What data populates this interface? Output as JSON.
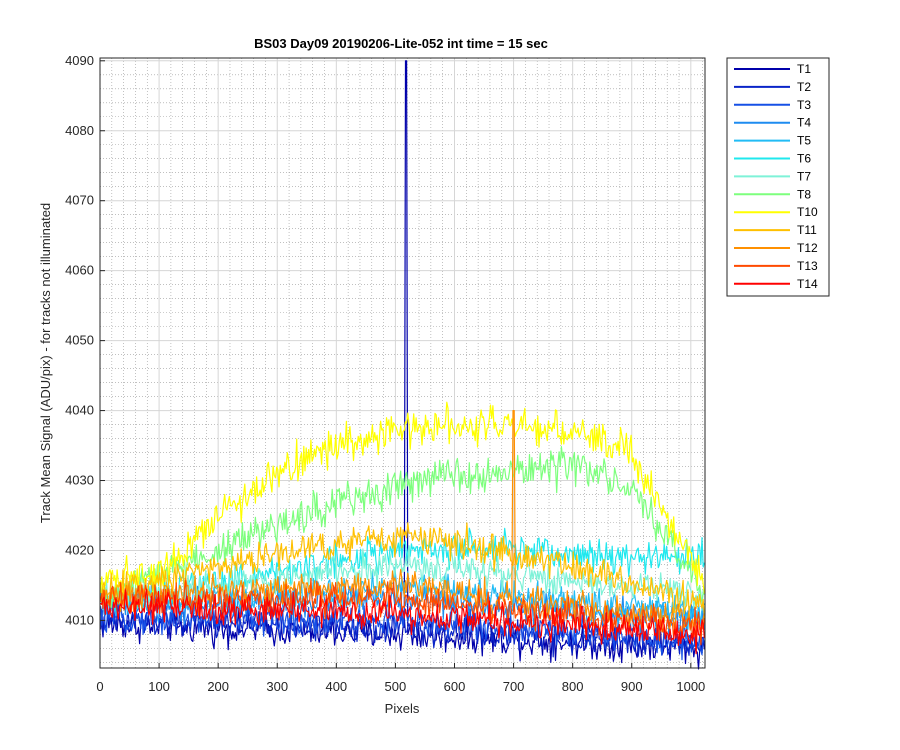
{
  "chart_data": {
    "type": "line",
    "title": "BS03 Day09 20190206-Lite-052 int time = 15 sec",
    "xlabel": "Pixels",
    "ylabel": "Track Mean Signal (ADU/pix) - for tracks not illuminated",
    "xlim": [
      0,
      1024
    ],
    "ylim": [
      4003.2,
      4090.4
    ],
    "xticks": [
      0,
      100,
      200,
      300,
      400,
      500,
      600,
      700,
      800,
      900,
      1000
    ],
    "yticks": [
      4010,
      4020,
      4030,
      4040,
      4050,
      4060,
      4070,
      4080,
      4090
    ],
    "grid": "major and minor",
    "legend_position": "outside top-right",
    "series": [
      {
        "name": "T1",
        "color": "#0000aa",
        "baseline_at": [
          [
            0,
            4009.5
          ],
          [
            500,
            4008
          ],
          [
            1020,
            4006
          ]
        ],
        "noise": 1.4,
        "spikes": [
          {
            "x": 518,
            "y": 4090
          }
        ]
      },
      {
        "name": "T2",
        "color": "#0a24c8",
        "baseline_at": [
          [
            0,
            4010
          ],
          [
            500,
            4009
          ],
          [
            1020,
            4006.5
          ]
        ],
        "noise": 1.4
      },
      {
        "name": "T3",
        "color": "#1650e6",
        "baseline_at": [
          [
            0,
            4010.5
          ],
          [
            500,
            4010
          ],
          [
            1020,
            4007
          ]
        ],
        "noise": 1.4
      },
      {
        "name": "T4",
        "color": "#1e8cf0",
        "baseline_at": [
          [
            0,
            4012
          ],
          [
            500,
            4013
          ],
          [
            1020,
            4010
          ]
        ],
        "noise": 1.4
      },
      {
        "name": "T5",
        "color": "#22bcf5",
        "baseline_at": [
          [
            0,
            4012.5
          ],
          [
            500,
            4015
          ],
          [
            1020,
            4011
          ]
        ],
        "noise": 1.4
      },
      {
        "name": "T6",
        "color": "#1fe8ee",
        "baseline_at": [
          [
            0,
            4013
          ],
          [
            300,
            4017
          ],
          [
            500,
            4020
          ],
          [
            700,
            4020
          ],
          [
            900,
            4019
          ],
          [
            1020,
            4019
          ]
        ],
        "noise": 1.5
      },
      {
        "name": "T7",
        "color": "#7ef2d8",
        "baseline_at": [
          [
            0,
            4013
          ],
          [
            500,
            4018
          ],
          [
            1020,
            4014
          ]
        ],
        "noise": 1.4
      },
      {
        "name": "T8",
        "color": "#7dff7d",
        "baseline_at": [
          [
            0,
            4013
          ],
          [
            200,
            4020
          ],
          [
            400,
            4027
          ],
          [
            600,
            4031
          ],
          [
            800,
            4032
          ],
          [
            900,
            4029
          ],
          [
            1020,
            4014
          ]
        ],
        "noise": 1.6
      },
      {
        "name": "T10",
        "color": "#ffff00",
        "baseline_at": [
          [
            0,
            4016
          ],
          [
            100,
            4017
          ],
          [
            200,
            4025
          ],
          [
            300,
            4031
          ],
          [
            400,
            4035
          ],
          [
            500,
            4037
          ],
          [
            600,
            4038.5
          ],
          [
            800,
            4037
          ],
          [
            900,
            4034
          ],
          [
            1020,
            4016
          ]
        ],
        "noise": 1.6
      },
      {
        "name": "T11",
        "color": "#ffc000",
        "baseline_at": [
          [
            0,
            4014
          ],
          [
            200,
            4018
          ],
          [
            400,
            4021
          ],
          [
            550,
            4022
          ],
          [
            800,
            4018
          ],
          [
            1020,
            4012
          ]
        ],
        "noise": 1.5
      },
      {
        "name": "T12",
        "color": "#ff9000",
        "baseline_at": [
          [
            0,
            4013.5
          ],
          [
            500,
            4015
          ],
          [
            1020,
            4010
          ]
        ],
        "noise": 1.4,
        "spikes": [
          {
            "x": 700,
            "y": 4040
          }
        ]
      },
      {
        "name": "T13",
        "color": "#ff4a00",
        "baseline_at": [
          [
            0,
            4013
          ],
          [
            500,
            4013
          ],
          [
            1020,
            4009
          ]
        ],
        "noise": 1.4
      },
      {
        "name": "T14",
        "color": "#ff0000",
        "baseline_at": [
          [
            0,
            4012
          ],
          [
            500,
            4011
          ],
          [
            1020,
            4008
          ]
        ],
        "noise": 1.4
      }
    ]
  }
}
